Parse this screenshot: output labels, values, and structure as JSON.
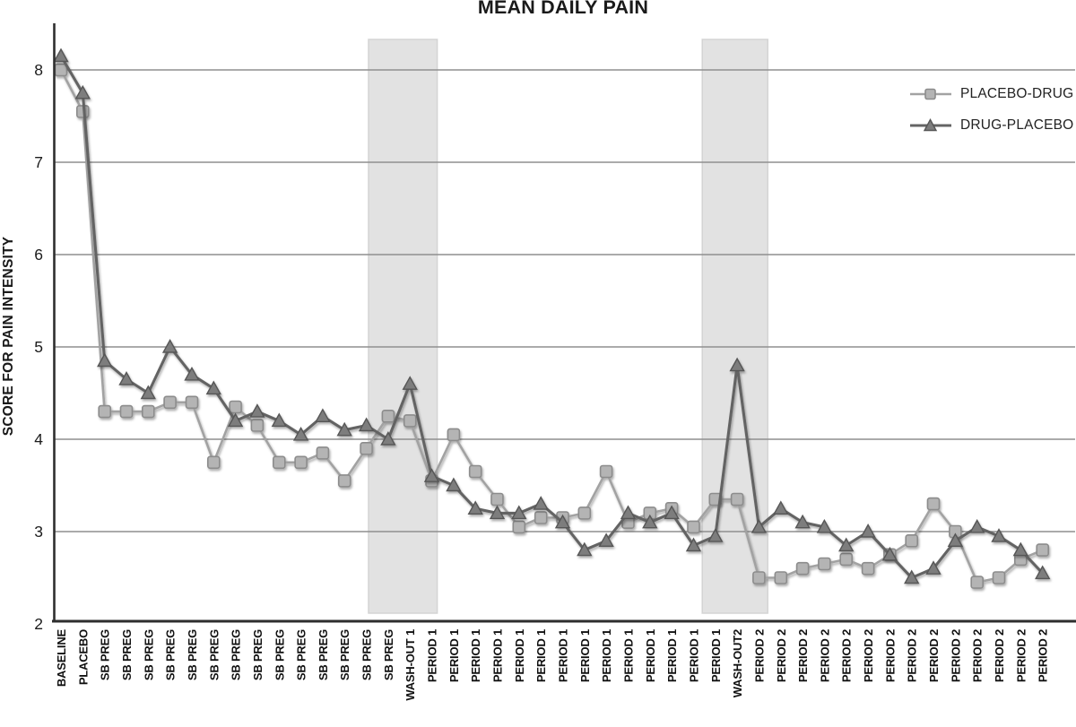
{
  "title": "MEAN DAILY PAIN",
  "y_axis_label": "SCORE FOR PAIN INTENSITY",
  "legend": [
    {
      "label": "PLACEBO-DRUG",
      "marker": "square"
    },
    {
      "label": "DRUG-PLACEBO",
      "marker": "triangle"
    }
  ],
  "colors": {
    "placebo_drug_line": "#a2a2a2",
    "placebo_drug_fill": "#b4b4b4",
    "placebo_drug_edge": "#8c8c8c",
    "drug_placebo_line": "#646464",
    "drug_placebo_fill": "#7d7d7d",
    "drug_placebo_edge": "#565656",
    "gridline": "#8f8f8f",
    "axis": "#2e2e2e",
    "band_fill": "#e2e2e2",
    "band_edge": "#d4d4d4",
    "text": "#1c1c1c"
  },
  "chart_data": {
    "type": "line",
    "title": "MEAN DAILY PAIN",
    "xlabel": "",
    "ylabel": "SCORE FOR PAIN INTENSITY",
    "ylim": [
      2,
      8.5
    ],
    "yticks": [
      2,
      3,
      4,
      5,
      6,
      7,
      8
    ],
    "grid": true,
    "legend_position": "top-right",
    "categories": [
      "BASELINE",
      "PLACEBO",
      "SB PREG",
      "SB PREG",
      "SB PREG",
      "SB PREG",
      "SB PREG",
      "SB PREG",
      "SB PREG",
      "SB PREG",
      "SB PREG",
      "SB PREG",
      "SB PREG",
      "SB PREG",
      "SB PREG",
      "SB PREG",
      "WASH-OUT 1",
      "PERIOD 1",
      "PERIOD 1",
      "PERIOD 1",
      "PERIOD 1",
      "PERIOD 1",
      "PERIOD 1",
      "PERIOD 1",
      "PERIOD 1",
      "PERIOD 1",
      "PERIOD 1",
      "PERIOD 1",
      "PERIOD 1",
      "PERIOD 1",
      "PERIOD 1",
      "WASH-OUT2",
      "PERIOD 2",
      "PERIOD 2",
      "PERIOD 2",
      "PERIOD 2",
      "PERIOD 2",
      "PERIOD 2",
      "PERIOD 2",
      "PERIOD 2",
      "PERIOD 2",
      "PERIOD 2",
      "PERIOD 2",
      "PERIOD 2",
      "PERIOD 2",
      "PERIOD 2"
    ],
    "series": [
      {
        "name": "PLACEBO-DRUG",
        "marker": "square",
        "values": [
          8.0,
          7.55,
          4.3,
          4.3,
          4.3,
          4.4,
          4.4,
          3.75,
          4.35,
          4.15,
          3.75,
          3.75,
          3.85,
          3.55,
          3.9,
          4.25,
          4.2,
          3.55,
          4.05,
          3.65,
          3.35,
          3.05,
          3.15,
          3.15,
          3.2,
          3.65,
          3.1,
          3.2,
          3.25,
          3.05,
          3.35,
          3.35,
          2.5,
          2.5,
          2.6,
          2.65,
          2.7,
          2.6,
          2.75,
          2.9,
          3.3,
          3.0,
          2.45,
          2.5,
          2.7,
          2.8
        ]
      },
      {
        "name": "DRUG-PLACEBO",
        "marker": "triangle",
        "values": [
          8.15,
          7.75,
          4.85,
          4.65,
          4.5,
          5.0,
          4.7,
          4.55,
          4.2,
          4.3,
          4.2,
          4.05,
          4.25,
          4.1,
          4.15,
          4.0,
          4.6,
          3.6,
          3.5,
          3.25,
          3.2,
          3.2,
          3.3,
          3.1,
          2.8,
          2.9,
          3.2,
          3.1,
          3.2,
          2.85,
          2.95,
          4.8,
          3.05,
          3.25,
          3.1,
          3.05,
          2.85,
          3.0,
          2.75,
          2.5,
          2.6,
          2.9,
          3.05,
          2.95,
          2.8,
          2.55
        ]
      }
    ],
    "washout_bands": [
      {
        "label": "WASH-OUT 1",
        "from_index": 14.1,
        "to_index": 17.25
      },
      {
        "label": "WASH-OUT2",
        "from_index": 29.4,
        "to_index": 32.4
      }
    ]
  }
}
